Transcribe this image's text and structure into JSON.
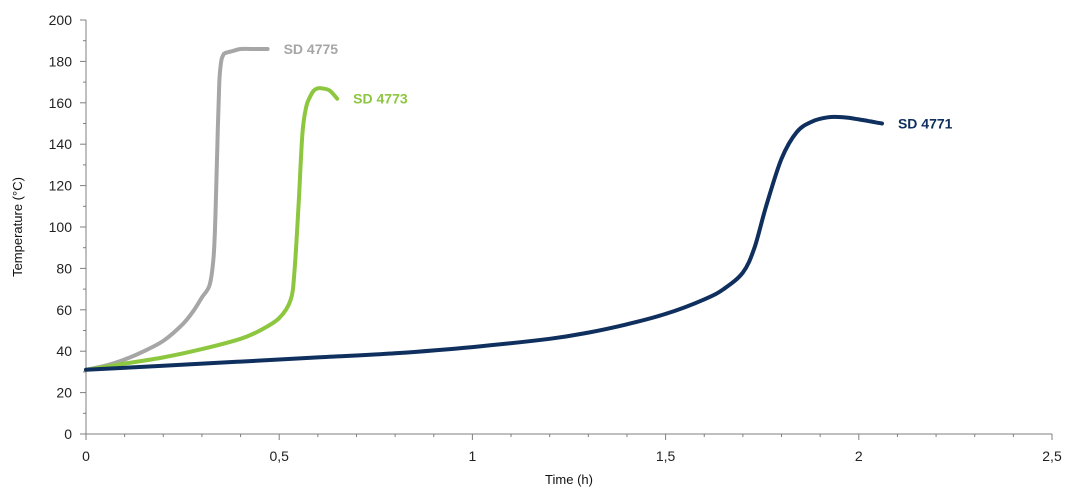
{
  "chart_data": {
    "type": "line",
    "title": "",
    "xlabel": "Time (h)",
    "ylabel": "Temperature (°C)",
    "xlim": [
      0,
      2.5
    ],
    "ylim": [
      0,
      200
    ],
    "x_ticks": [
      "0",
      "0,5",
      "1",
      "1,5",
      "2",
      "2,5"
    ],
    "y_ticks": [
      "0",
      "20",
      "40",
      "60",
      "80",
      "100",
      "120",
      "140",
      "160",
      "180",
      "200"
    ],
    "grid": false,
    "series": [
      {
        "name": "SD 4775",
        "color": "#a6a6a6",
        "x": [
          0,
          0.05,
          0.1,
          0.15,
          0.2,
          0.25,
          0.28,
          0.3,
          0.32,
          0.33,
          0.335,
          0.34,
          0.345,
          0.35,
          0.355,
          0.36,
          0.38,
          0.4,
          0.43,
          0.47
        ],
        "y": [
          31,
          33,
          36,
          40,
          45,
          53,
          60,
          66,
          72,
          85,
          105,
          140,
          170,
          180,
          183,
          184,
          185,
          186,
          186,
          186
        ]
      },
      {
        "name": "SD 4773",
        "color": "#8dc63f",
        "x": [
          0,
          0.1,
          0.2,
          0.3,
          0.4,
          0.45,
          0.5,
          0.53,
          0.54,
          0.55,
          0.56,
          0.57,
          0.58,
          0.59,
          0.6,
          0.61,
          0.63,
          0.65
        ],
        "y": [
          31,
          34,
          37,
          41,
          46,
          50,
          56,
          65,
          80,
          110,
          145,
          158,
          163,
          166,
          167,
          167,
          166,
          162
        ]
      },
      {
        "name": "SD 4771",
        "color": "#0f2f5e",
        "x": [
          0,
          0.2,
          0.4,
          0.6,
          0.8,
          1.0,
          1.2,
          1.3,
          1.4,
          1.5,
          1.6,
          1.65,
          1.7,
          1.73,
          1.76,
          1.8,
          1.84,
          1.88,
          1.92,
          1.96,
          2.0,
          2.03,
          2.06
        ],
        "y": [
          31,
          33,
          35,
          37,
          39,
          42,
          46,
          49,
          53,
          58,
          65,
          70,
          78,
          90,
          110,
          133,
          146,
          151,
          153,
          153,
          152,
          151,
          150
        ]
      }
    ]
  }
}
